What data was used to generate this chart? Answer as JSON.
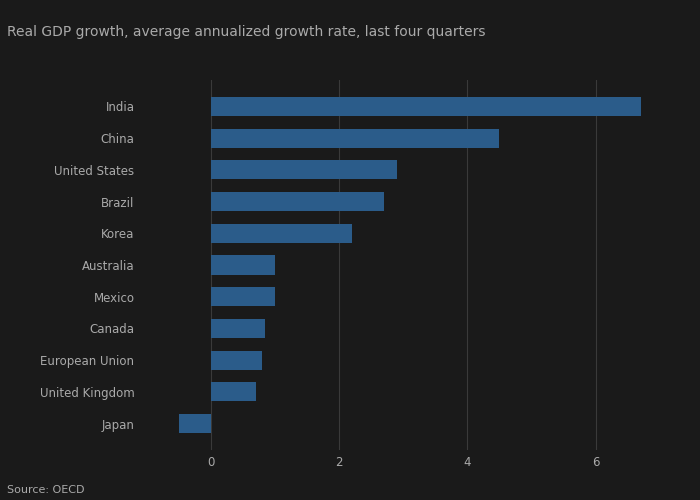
{
  "title": "Real GDP growth, average annualized growth rate, last four quarters",
  "source": "Source: OECD",
  "categories": [
    "India",
    "China",
    "United States",
    "Brazil",
    "Korea",
    "Australia",
    "Mexico",
    "Canada",
    "European Union",
    "United Kingdom",
    "Japan"
  ],
  "values": [
    6.7,
    4.5,
    2.9,
    2.7,
    2.2,
    1.0,
    1.0,
    0.85,
    0.8,
    0.7,
    -0.5
  ],
  "bar_color": "#2b5c8a",
  "background_color": "#1a1a1a",
  "text_color": "#aaaaaa",
  "grid_color": "#3a3a3a",
  "xlim": [
    -1.1,
    7.3
  ],
  "xticks": [
    0,
    2,
    4,
    6
  ],
  "title_fontsize": 10,
  "tick_fontsize": 8.5,
  "source_fontsize": 8
}
